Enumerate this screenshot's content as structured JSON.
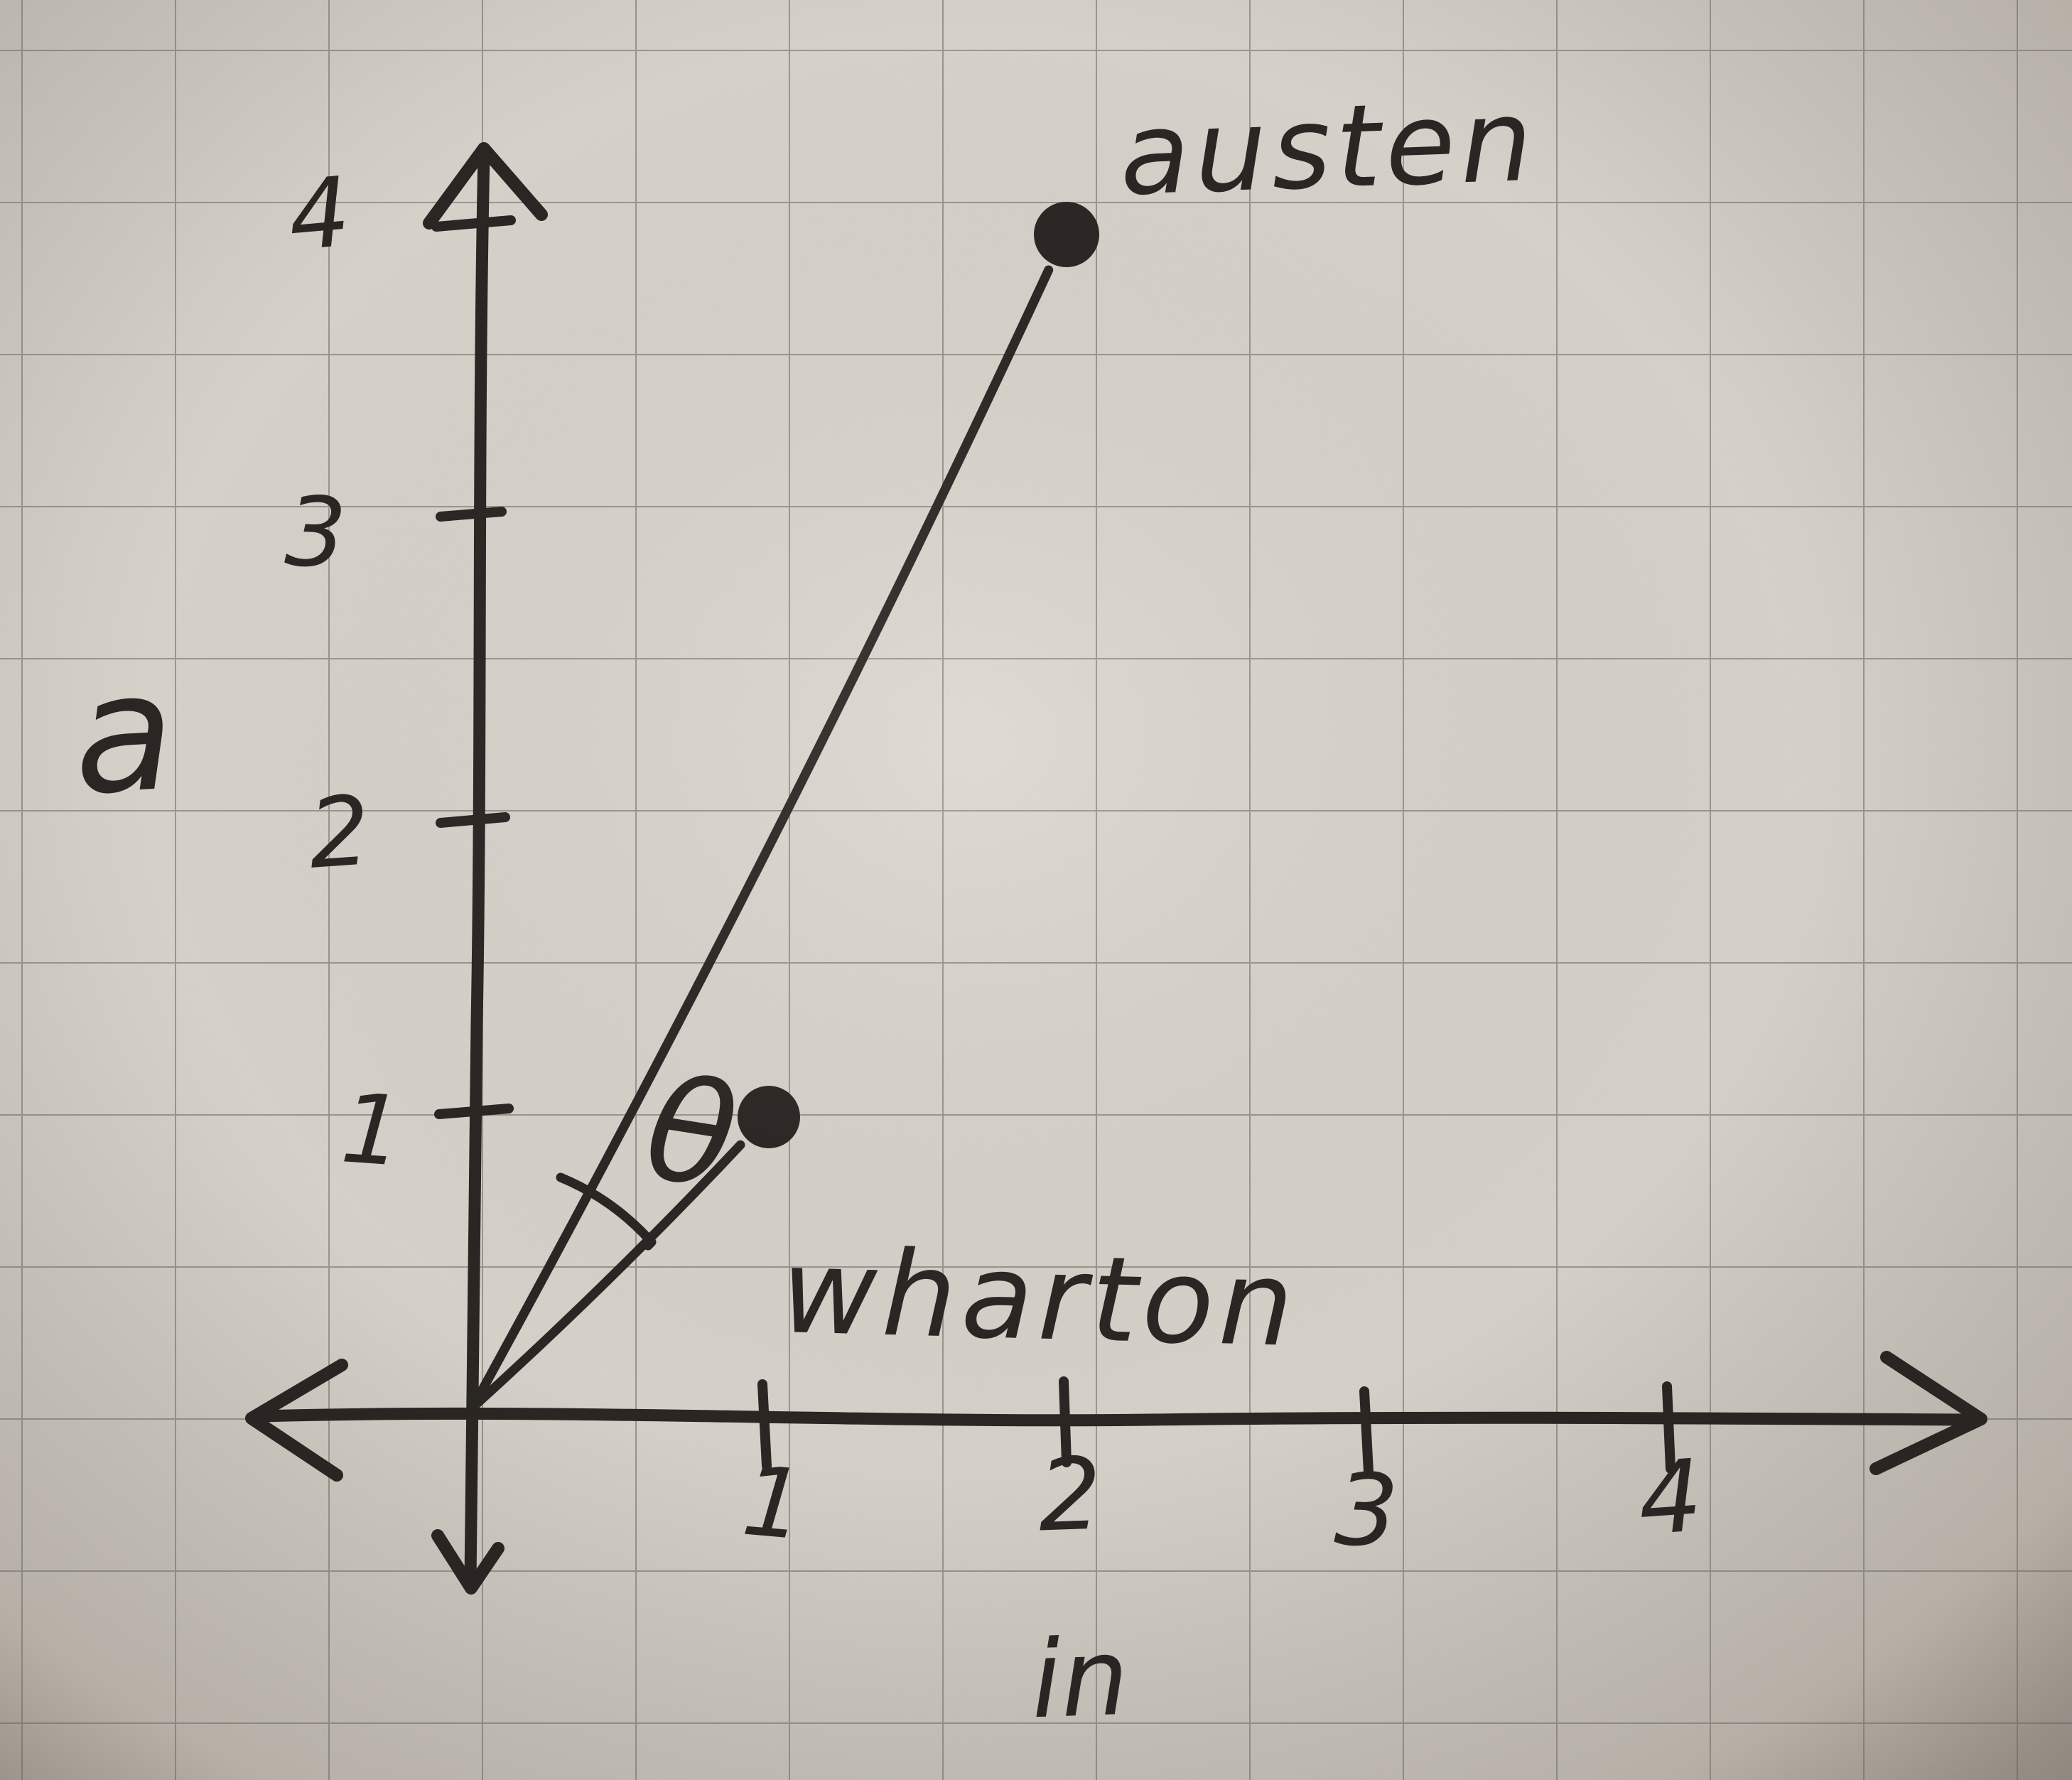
{
  "colors": {
    "ink": "#2b2623",
    "paper": "#d7d2ca",
    "paper_edge": "#bab3aa",
    "grid_line": "#8e8b85"
  },
  "chart_data": {
    "type": "scatter",
    "title": "",
    "xlabel": "in",
    "ylabel": "a",
    "x_ticks": [
      "1",
      "2",
      "3",
      "4"
    ],
    "y_ticks": [
      "1",
      "2",
      "3",
      "4"
    ],
    "xlim": [
      0,
      4.8
    ],
    "ylim": [
      0,
      4.4
    ],
    "grid": true,
    "points": [
      {
        "label": "austen",
        "x": 2,
        "y": 4
      },
      {
        "label": "wharton",
        "x": 1,
        "y": 1
      }
    ],
    "vectors_from_origin": true,
    "angle_label": "θ",
    "angle_between": [
      "austen",
      "wharton"
    ],
    "layout_hints": {
      "axis_arrows": "both-ends",
      "legend": "none",
      "style": "hand-drawn on quad-ruled graph paper"
    }
  }
}
